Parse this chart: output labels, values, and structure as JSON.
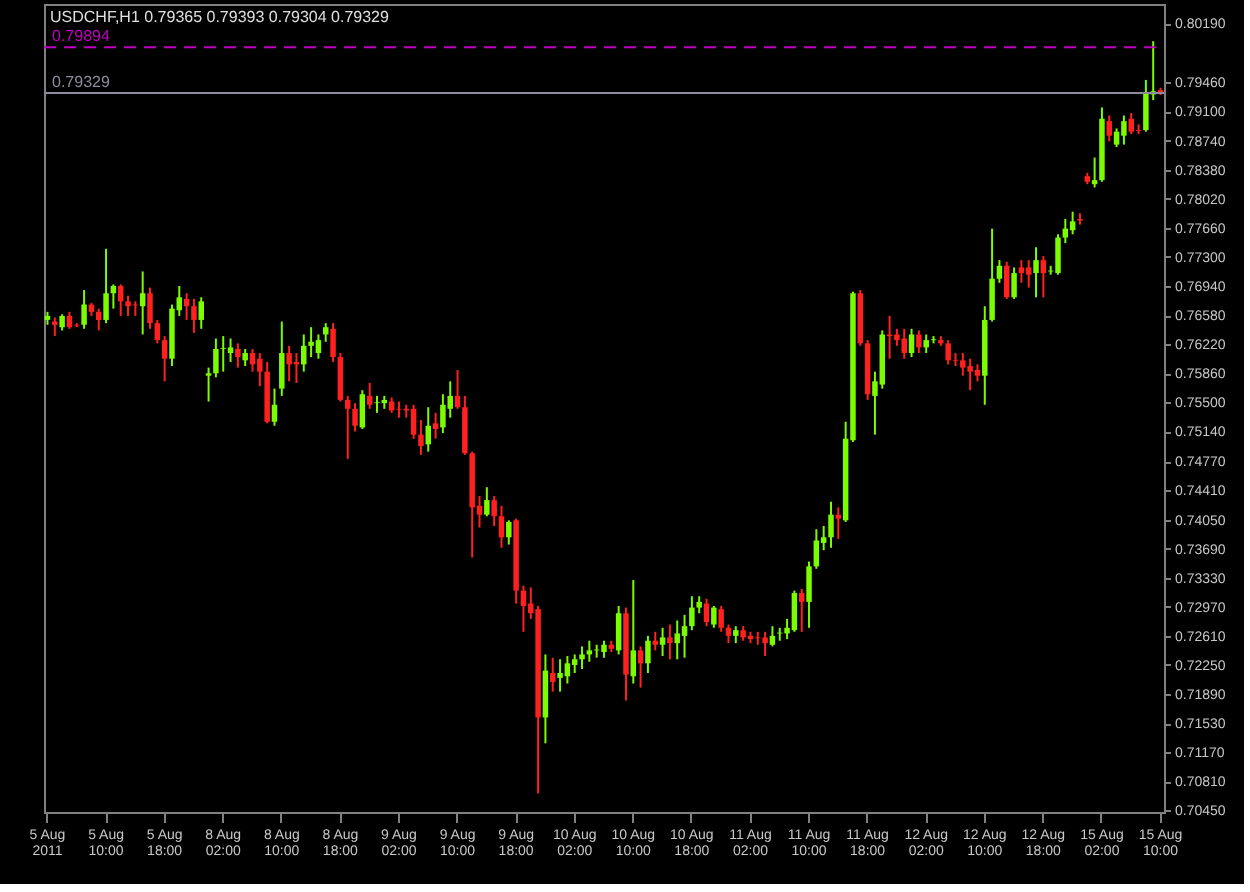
{
  "chart_data": {
    "type": "candlestick",
    "title": "USDCHF,H1  0.79365 0.79393 0.79304 0.79329",
    "categories": [
      "5 Aug 2011",
      null,
      null,
      null,
      null,
      null,
      null,
      null,
      "5 Aug 10:00",
      null,
      null,
      null,
      null,
      null,
      null,
      null,
      "5 Aug 18:00",
      null,
      null,
      null,
      null,
      null,
      null,
      null,
      "8 Aug 02:00",
      null,
      null,
      null,
      null,
      null,
      null,
      null,
      "8 Aug 10:00",
      null,
      null,
      null,
      null,
      null,
      null,
      null,
      "8 Aug 18:00",
      null,
      null,
      null,
      null,
      null,
      null,
      null,
      "9 Aug 02:00",
      null,
      null,
      null,
      null,
      null,
      null,
      null,
      "9 Aug 10:00",
      null,
      null,
      null,
      null,
      null,
      null,
      null,
      "9 Aug 18:00",
      null,
      null,
      null,
      null,
      null,
      null,
      null,
      "10 Aug 02:00",
      null,
      null,
      null,
      null,
      null,
      null,
      null,
      "10 Aug 10:00",
      null,
      null,
      null,
      null,
      null,
      null,
      null,
      "10 Aug 18:00",
      null,
      null,
      null,
      null,
      null,
      null,
      null,
      "11 Aug 02:00",
      null,
      null,
      null,
      null,
      null,
      null,
      null,
      "11 Aug 10:00",
      null,
      null,
      null,
      null,
      null,
      null,
      null,
      "11 Aug 18:00",
      null,
      null,
      null,
      null,
      null,
      null,
      null,
      "12 Aug 02:00",
      null,
      null,
      null,
      null,
      null,
      null,
      null,
      "12 Aug 10:00",
      null,
      null,
      null,
      null,
      null,
      null,
      null,
      "12 Aug 18:00",
      null,
      null,
      null,
      null,
      null,
      null,
      null,
      "15 Aug 02:00",
      null,
      null,
      null,
      null,
      null,
      null,
      null,
      "15 Aug 10:00"
    ],
    "ohlc": [
      [
        0.7652,
        0.7662,
        0.7646,
        0.7657
      ],
      [
        0.765,
        0.7655,
        0.7632,
        0.7646
      ],
      [
        0.7643,
        0.7659,
        0.7639,
        0.7657
      ],
      [
        0.7657,
        0.7662,
        0.7641,
        0.7643
      ],
      [
        0.7646,
        0.7648,
        0.7643,
        0.7645
      ],
      [
        0.7646,
        0.7689,
        0.7641,
        0.7671
      ],
      [
        0.7671,
        0.7673,
        0.7657,
        0.7662
      ],
      [
        0.7662,
        0.7666,
        0.7639,
        0.7652
      ],
      [
        0.7652,
        0.774,
        0.7648,
        0.7685
      ],
      [
        0.7685,
        0.7696,
        0.7666,
        0.7694
      ],
      [
        0.7694,
        0.7696,
        0.7657,
        0.7675
      ],
      [
        0.7675,
        0.7682,
        0.7657,
        0.7669
      ],
      [
        0.7671,
        0.7675,
        0.7657,
        0.767
      ],
      [
        0.7669,
        0.7712,
        0.7634,
        0.7685
      ],
      [
        0.7685,
        0.7692,
        0.7641,
        0.7648
      ],
      [
        0.7648,
        0.7652,
        0.7623,
        0.7627
      ],
      [
        0.7627,
        0.7632,
        0.7576,
        0.7604
      ],
      [
        0.7604,
        0.7671,
        0.7595,
        0.7666
      ],
      [
        0.7664,
        0.7694,
        0.7657,
        0.768
      ],
      [
        0.7678,
        0.7685,
        0.7652,
        0.7669
      ],
      [
        0.7669,
        0.7678,
        0.7636,
        0.7652
      ],
      [
        0.7652,
        0.768,
        0.7641,
        0.7675
      ],
      [
        0.7583,
        0.7593,
        0.7551,
        0.7586
      ],
      [
        0.7586,
        0.7629,
        0.7581,
        0.7616
      ],
      [
        0.7616,
        0.7632,
        0.7588,
        0.7617
      ],
      [
        0.7611,
        0.7629,
        0.76,
        0.7618
      ],
      [
        0.7616,
        0.7623,
        0.7593,
        0.7606
      ],
      [
        0.7602,
        0.7616,
        0.7595,
        0.7611
      ],
      [
        0.7611,
        0.7616,
        0.7588,
        0.7597
      ],
      [
        0.7604,
        0.7611,
        0.757,
        0.7588
      ],
      [
        0.7588,
        0.76,
        0.7524,
        0.7526
      ],
      [
        0.7526,
        0.7567,
        0.7521,
        0.7547
      ],
      [
        0.7567,
        0.765,
        0.7558,
        0.7611
      ],
      [
        0.7611,
        0.762,
        0.7576,
        0.7597
      ],
      [
        0.76,
        0.7611,
        0.7574,
        0.7597
      ],
      [
        0.7597,
        0.7634,
        0.7588,
        0.762
      ],
      [
        0.762,
        0.7643,
        0.7606,
        0.7625
      ],
      [
        0.7611,
        0.7634,
        0.7604,
        0.7627
      ],
      [
        0.7634,
        0.7648,
        0.7625,
        0.7643
      ],
      [
        0.7641,
        0.7648,
        0.76,
        0.7606
      ],
      [
        0.7606,
        0.7611,
        0.7551,
        0.7553
      ],
      [
        0.7553,
        0.7558,
        0.748,
        0.7542
      ],
      [
        0.7542,
        0.7549,
        0.7514,
        0.7521
      ],
      [
        0.7519,
        0.7565,
        0.7517,
        0.756
      ],
      [
        0.7558,
        0.7574,
        0.7542,
        0.7547
      ],
      [
        0.7549,
        0.7558,
        0.7537,
        0.755
      ],
      [
        0.7549,
        0.7558,
        0.7542,
        0.7553
      ],
      [
        0.7551,
        0.7556,
        0.7537,
        0.754
      ],
      [
        0.7542,
        0.7551,
        0.7531,
        0.7541
      ],
      [
        0.7542,
        0.7547,
        0.7531,
        0.754
      ],
      [
        0.7542,
        0.7547,
        0.7505,
        0.751
      ],
      [
        0.751,
        0.7528,
        0.7485,
        0.7496
      ],
      [
        0.7498,
        0.7544,
        0.7489,
        0.7521
      ],
      [
        0.7524,
        0.7537,
        0.7505,
        0.7517
      ],
      [
        0.7519,
        0.756,
        0.7512,
        0.7547
      ],
      [
        0.7542,
        0.7576,
        0.7531,
        0.7558
      ],
      [
        0.7558,
        0.759,
        0.7542,
        0.7544
      ],
      [
        0.7544,
        0.7558,
        0.7485,
        0.7487
      ],
      [
        0.7487,
        0.7489,
        0.7358,
        0.742
      ],
      [
        0.7422,
        0.7434,
        0.7395,
        0.7411
      ],
      [
        0.7411,
        0.7445,
        0.7409,
        0.7429
      ],
      [
        0.7429,
        0.7434,
        0.7397,
        0.7409
      ],
      [
        0.7409,
        0.7422,
        0.737,
        0.7383
      ],
      [
        0.7383,
        0.7404,
        0.7374,
        0.7402
      ],
      [
        0.7404,
        0.7406,
        0.7301,
        0.7317
      ],
      [
        0.7317,
        0.7323,
        0.7266,
        0.7298
      ],
      [
        0.7301,
        0.7321,
        0.7282,
        0.7289
      ],
      [
        0.7294,
        0.7298,
        0.7066,
        0.716
      ],
      [
        0.716,
        0.7238,
        0.7128,
        0.7218
      ],
      [
        0.7215,
        0.7234,
        0.7192,
        0.7204
      ],
      [
        0.7209,
        0.7232,
        0.7192,
        0.7215
      ],
      [
        0.7211,
        0.7236,
        0.7202,
        0.7227
      ],
      [
        0.7225,
        0.7238,
        0.7215,
        0.7232
      ],
      [
        0.7232,
        0.7248,
        0.722,
        0.7238
      ],
      [
        0.7238,
        0.7255,
        0.7229,
        0.7243
      ],
      [
        0.7243,
        0.725,
        0.7234,
        0.7244
      ],
      [
        0.7241,
        0.7255,
        0.7234,
        0.725
      ],
      [
        0.725,
        0.7255,
        0.7241,
        0.7245
      ],
      [
        0.7243,
        0.7298,
        0.7238,
        0.7289
      ],
      [
        0.7289,
        0.7296,
        0.7181,
        0.7213
      ],
      [
        0.7211,
        0.733,
        0.7202,
        0.7243
      ],
      [
        0.7243,
        0.7248,
        0.7197,
        0.7227
      ],
      [
        0.7227,
        0.7261,
        0.7215,
        0.7255
      ],
      [
        0.7255,
        0.7266,
        0.7243,
        0.725
      ],
      [
        0.725,
        0.7271,
        0.7236,
        0.7259
      ],
      [
        0.7259,
        0.7275,
        0.7232,
        0.7252
      ],
      [
        0.7252,
        0.728,
        0.7232,
        0.7264
      ],
      [
        0.7261,
        0.7287,
        0.7234,
        0.7273
      ],
      [
        0.7273,
        0.731,
        0.7268,
        0.7296
      ],
      [
        0.7296,
        0.731,
        0.7289,
        0.7303
      ],
      [
        0.7301,
        0.7307,
        0.7273,
        0.7278
      ],
      [
        0.7275,
        0.7298,
        0.7271,
        0.7296
      ],
      [
        0.7294,
        0.7298,
        0.7266,
        0.7271
      ],
      [
        0.7271,
        0.7275,
        0.7252,
        0.7261
      ],
      [
        0.7261,
        0.7273,
        0.7252,
        0.7268
      ],
      [
        0.7268,
        0.7273,
        0.7255,
        0.7259
      ],
      [
        0.7261,
        0.7266,
        0.7252,
        0.7257
      ],
      [
        0.7259,
        0.7266,
        0.725,
        0.7258
      ],
      [
        0.7259,
        0.7266,
        0.7236,
        0.7252
      ],
      [
        0.725,
        0.7273,
        0.7248,
        0.7261
      ],
      [
        0.7264,
        0.7271,
        0.7255,
        0.7265
      ],
      [
        0.7264,
        0.7282,
        0.7257,
        0.7271
      ],
      [
        0.7268,
        0.7317,
        0.7266,
        0.7314
      ],
      [
        0.7314,
        0.7319,
        0.7266,
        0.7303
      ],
      [
        0.7303,
        0.7353,
        0.7271,
        0.7347
      ],
      [
        0.7347,
        0.7393,
        0.7344,
        0.7379
      ],
      [
        0.7376,
        0.7397,
        0.7367,
        0.7383
      ],
      [
        0.7383,
        0.7427,
        0.737,
        0.7411
      ],
      [
        0.7411,
        0.742,
        0.7381,
        0.7406
      ],
      [
        0.7404,
        0.7526,
        0.7402,
        0.7505
      ],
      [
        0.7503,
        0.7687,
        0.7501,
        0.7685
      ],
      [
        0.7685,
        0.7689,
        0.762,
        0.7623
      ],
      [
        0.7623,
        0.7627,
        0.7553,
        0.756
      ],
      [
        0.7558,
        0.7588,
        0.751,
        0.7576
      ],
      [
        0.7572,
        0.7639,
        0.7567,
        0.7634
      ],
      [
        0.7634,
        0.7657,
        0.7604,
        0.7632
      ],
      [
        0.7634,
        0.7641,
        0.762,
        0.7627
      ],
      [
        0.7629,
        0.7641,
        0.7604,
        0.7611
      ],
      [
        0.7611,
        0.7641,
        0.7606,
        0.7634
      ],
      [
        0.7634,
        0.7639,
        0.7611,
        0.7618
      ],
      [
        0.7618,
        0.7634,
        0.7611,
        0.7627
      ],
      [
        0.7627,
        0.7632,
        0.7623,
        0.7628
      ],
      [
        0.7627,
        0.7632,
        0.762,
        0.7623
      ],
      [
        0.7623,
        0.7627,
        0.7597,
        0.7602
      ],
      [
        0.7602,
        0.7611,
        0.7595,
        0.7601
      ],
      [
        0.7602,
        0.7611,
        0.7583,
        0.7593
      ],
      [
        0.7595,
        0.7604,
        0.7565,
        0.7588
      ],
      [
        0.759,
        0.7597,
        0.7576,
        0.7583
      ],
      [
        0.7583,
        0.7669,
        0.7547,
        0.7652
      ],
      [
        0.7652,
        0.7765,
        0.765,
        0.7703
      ],
      [
        0.7703,
        0.7726,
        0.7698,
        0.7719
      ],
      [
        0.7719,
        0.7724,
        0.7678,
        0.768
      ],
      [
        0.768,
        0.7717,
        0.7678,
        0.771
      ],
      [
        0.7717,
        0.7726,
        0.7698,
        0.771
      ],
      [
        0.7717,
        0.7726,
        0.7692,
        0.7708
      ],
      [
        0.771,
        0.7742,
        0.768,
        0.7726
      ],
      [
        0.7726,
        0.7731,
        0.768,
        0.771
      ],
      [
        0.7712,
        0.7719,
        0.7708,
        0.7713
      ],
      [
        0.771,
        0.7758,
        0.7708,
        0.7754
      ],
      [
        0.7754,
        0.7777,
        0.7747,
        0.7765
      ],
      [
        0.7763,
        0.7786,
        0.7758,
        0.7774
      ],
      [
        0.7777,
        0.7784,
        0.777,
        0.7775
      ],
      [
        0.783,
        0.7834,
        0.782,
        0.7823
      ],
      [
        0.782,
        0.7853,
        0.7816,
        0.7825
      ],
      [
        0.7825,
        0.7915,
        0.7823,
        0.7901
      ],
      [
        0.7898,
        0.7905,
        0.7873,
        0.788
      ],
      [
        0.7869,
        0.7889,
        0.7866,
        0.7885
      ],
      [
        0.788,
        0.7905,
        0.7869,
        0.7898
      ],
      [
        0.7901,
        0.7908,
        0.7882,
        0.7885
      ],
      [
        0.7887,
        0.7894,
        0.7882,
        0.7886
      ],
      [
        0.7887,
        0.7949,
        0.7885,
        0.7933
      ],
      [
        0.7931,
        0.7997,
        0.7924,
        0.7935
      ],
      [
        0.79365,
        0.79393,
        0.79304,
        0.79329
      ]
    ],
    "colors": [
      "#7cfc00",
      "#ff2020",
      "#7cfc00",
      "#ff2020",
      "#ff2020",
      "#7cfc00",
      "#ff2020",
      "#ff2020",
      "#7cfc00",
      "#7cfc00",
      "#ff2020",
      "#ff2020",
      "#ff2020",
      "#7cfc00",
      "#ff2020",
      "#ff2020",
      "#ff2020",
      "#7cfc00",
      "#7cfc00",
      "#ff2020",
      "#ff2020",
      "#7cfc00",
      "#7cfc00",
      "#7cfc00",
      "#7cfc00",
      "#7cfc00",
      "#ff2020",
      "#7cfc00",
      "#ff2020",
      "#ff2020",
      "#ff2020",
      "#7cfc00",
      "#7cfc00",
      "#ff2020",
      "#ff2020",
      "#7cfc00",
      "#7cfc00",
      "#7cfc00",
      "#7cfc00",
      "#ff2020",
      "#ff2020",
      "#ff2020",
      "#ff2020",
      "#7cfc00",
      "#ff2020",
      "#7cfc00",
      "#7cfc00",
      "#ff2020",
      "#ff2020",
      "#ff2020",
      "#ff2020",
      "#ff2020",
      "#7cfc00",
      "#ff2020",
      "#7cfc00",
      "#7cfc00",
      "#ff2020",
      "#ff2020",
      "#ff2020",
      "#ff2020",
      "#7cfc00",
      "#ff2020",
      "#ff2020",
      "#7cfc00",
      "#ff2020",
      "#ff2020",
      "#ff2020",
      "#ff2020",
      "#7cfc00",
      "#ff2020",
      "#7cfc00",
      "#7cfc00",
      "#7cfc00",
      "#7cfc00",
      "#7cfc00",
      "#7cfc00",
      "#7cfc00",
      "#ff2020",
      "#7cfc00",
      "#ff2020",
      "#7cfc00",
      "#ff2020",
      "#7cfc00",
      "#ff2020",
      "#7cfc00",
      "#ff2020",
      "#7cfc00",
      "#7cfc00",
      "#7cfc00",
      "#7cfc00",
      "#ff2020",
      "#7cfc00",
      "#ff2020",
      "#ff2020",
      "#7cfc00",
      "#ff2020",
      "#ff2020",
      "#ff2020",
      "#ff2020",
      "#7cfc00",
      "#7cfc00",
      "#7cfc00",
      "#7cfc00",
      "#ff2020",
      "#7cfc00",
      "#7cfc00",
      "#7cfc00",
      "#7cfc00",
      "#ff2020",
      "#7cfc00",
      "#7cfc00",
      "#ff2020",
      "#ff2020",
      "#7cfc00",
      "#7cfc00",
      "#ff2020",
      "#ff2020",
      "#ff2020",
      "#7cfc00",
      "#ff2020",
      "#7cfc00",
      "#7cfc00",
      "#ff2020",
      "#ff2020",
      "#ff2020",
      "#ff2020",
      "#ff2020",
      "#ff2020",
      "#7cfc00",
      "#7cfc00",
      "#7cfc00",
      "#ff2020",
      "#7cfc00",
      "#ff2020",
      "#ff2020",
      "#7cfc00",
      "#ff2020",
      "#7cfc00",
      "#7cfc00",
      "#7cfc00",
      "#7cfc00",
      "#ff2020",
      "#ff2020",
      "#7cfc00",
      "#7cfc00",
      "#ff2020",
      "#7cfc00",
      "#7cfc00",
      "#ff2020",
      "#ff2020",
      "#7cfc00",
      "#7cfc00",
      "#ff2020"
    ],
    "ylim": [
      0.7043,
      0.8043
    ],
    "yticks": [
      {
        "value": 0.7045,
        "label": "0.70450"
      },
      {
        "value": 0.7081,
        "label": "0.70810"
      },
      {
        "value": 0.7117,
        "label": "0.71170"
      },
      {
        "value": 0.7153,
        "label": "0.71530"
      },
      {
        "value": 0.7189,
        "label": "0.71890"
      },
      {
        "value": 0.7225,
        "label": "0.72250"
      },
      {
        "value": 0.7261,
        "label": "0.72610"
      },
      {
        "value": 0.7297,
        "label": "0.72970"
      },
      {
        "value": 0.7333,
        "label": "0.73330"
      },
      {
        "value": 0.7369,
        "label": "0.73690"
      },
      {
        "value": 0.7405,
        "label": "0.74050"
      },
      {
        "value": 0.7441,
        "label": "0.74410"
      },
      {
        "value": 0.7477,
        "label": "0.74770"
      },
      {
        "value": 0.7514,
        "label": "0.75140"
      },
      {
        "value": 0.755,
        "label": "0.75500"
      },
      {
        "value": 0.7586,
        "label": "0.75860"
      },
      {
        "value": 0.7622,
        "label": "0.76220"
      },
      {
        "value": 0.7658,
        "label": "0.76580"
      },
      {
        "value": 0.7694,
        "label": "0.76940"
      },
      {
        "value": 0.773,
        "label": "0.77300"
      },
      {
        "value": 0.7766,
        "label": "0.77660"
      },
      {
        "value": 0.7802,
        "label": "0.78020"
      },
      {
        "value": 0.7838,
        "label": "0.78380"
      },
      {
        "value": 0.7874,
        "label": "0.78740"
      },
      {
        "value": 0.791,
        "label": "0.79100"
      },
      {
        "value": 0.7946,
        "label": "0.79460"
      },
      {
        "value": 0.8019,
        "label": "0.80190"
      }
    ],
    "ref_lines": [
      {
        "axis": "y",
        "value": 0.79894,
        "label": "0.79894",
        "color": "#c000c0",
        "line_style": "dashed"
      },
      {
        "axis": "y",
        "value": 0.79329,
        "label": "0.79329",
        "color": "#8c8c9c",
        "line_style": "solid"
      }
    ],
    "grid": false
  }
}
